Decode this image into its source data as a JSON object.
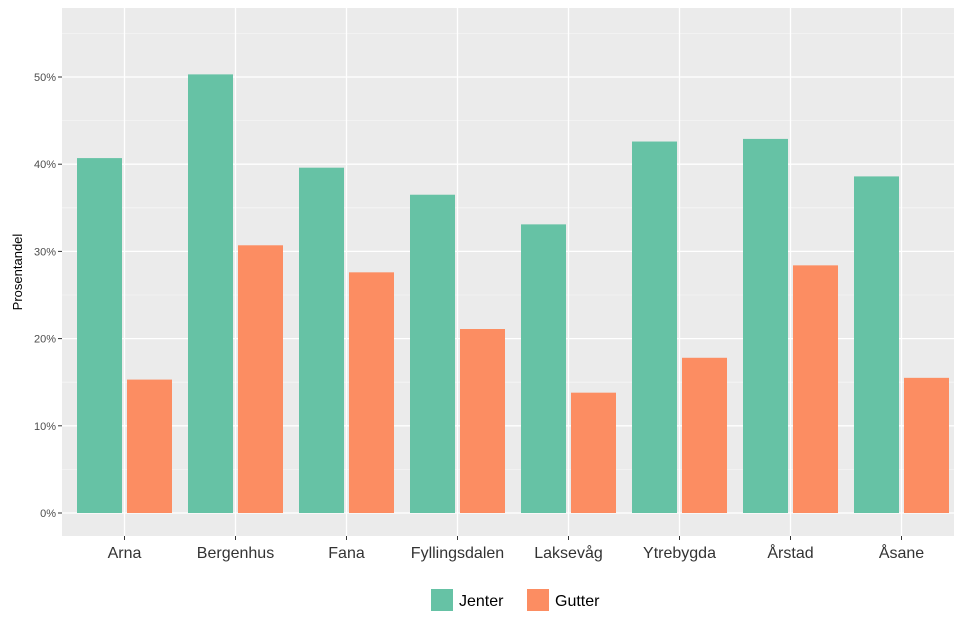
{
  "chart_data": {
    "type": "bar",
    "title": "",
    "xlabel": "",
    "ylabel": "Prosentandel",
    "ylim": [
      0,
      0.56
    ],
    "yticks": [
      0,
      0.1,
      0.2,
      0.3,
      0.4,
      0.5
    ],
    "ytick_labels": [
      "0%",
      "10%",
      "20%",
      "30%",
      "40%",
      "50%"
    ],
    "categories": [
      "Arna",
      "Bergenhus",
      "Fana",
      "Fyllingsdalen",
      "Laksevåg",
      "Ytrebygda",
      "Årstad",
      "Åsane"
    ],
    "series": [
      {
        "name": "Jenter",
        "color": "#66c2a5",
        "values": [
          0.407,
          0.503,
          0.396,
          0.365,
          0.331,
          0.426,
          0.429,
          0.386
        ]
      },
      {
        "name": "Gutter",
        "color": "#fc8d62",
        "values": [
          0.153,
          0.307,
          0.276,
          0.211,
          0.138,
          0.178,
          0.284,
          0.155
        ]
      }
    ],
    "grid": true,
    "legend_position": "bottom",
    "panel_background": "#ebebeb"
  }
}
